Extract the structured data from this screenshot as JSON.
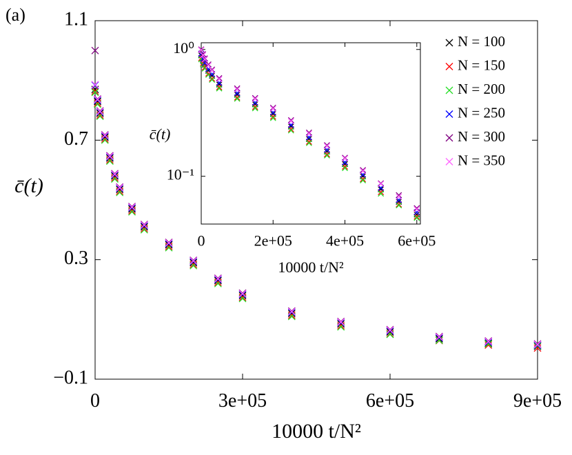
{
  "chart_data": [
    {
      "type": "scatter",
      "annotation": "(a)",
      "x_label": "10000 t/N²",
      "y_label": "c̄(t)",
      "xlim": [
        0,
        900000
      ],
      "ylim": [
        -0.1,
        1.1
      ],
      "xticks": [
        0,
        {
          "value": 300000,
          "label": "3e+05"
        },
        {
          "value": 600000,
          "label": "6e+05"
        },
        {
          "value": 900000,
          "label": "9e+05"
        }
      ],
      "yticks": [
        {
          "value": -0.1,
          "label": "−0.1"
        },
        0.3,
        0.7,
        1.1
      ],
      "grid": false,
      "log_y": false,
      "legend": "upper right",
      "x": [
        0,
        5000,
        10000,
        20000,
        30000,
        40000,
        50000,
        75000,
        100000,
        150000,
        200000,
        250000,
        300000,
        400000,
        500000,
        600000,
        700000,
        800000,
        900000
      ],
      "series": [
        {
          "name": "N = 100",
          "color": "#000000",
          "values": [
            0.87,
            0.83,
            0.79,
            0.71,
            0.64,
            0.58,
            0.535,
            0.47,
            0.41,
            0.35,
            0.29,
            0.23,
            0.18,
            0.12,
            0.085,
            0.058,
            0.035,
            0.02,
            0.01
          ]
        },
        {
          "name": "N = 150",
          "color": "#ff0000",
          "values": [
            0.864,
            0.824,
            0.784,
            0.704,
            0.634,
            0.574,
            0.529,
            0.464,
            0.404,
            0.344,
            0.284,
            0.224,
            0.174,
            0.114,
            0.079,
            0.052,
            0.029,
            0.014,
            0.004
          ]
        },
        {
          "name": "N = 200",
          "color": "#22dd22",
          "values": [
            0.86,
            0.82,
            0.78,
            0.7,
            0.63,
            0.57,
            0.525,
            0.46,
            0.4,
            0.34,
            0.28,
            0.22,
            0.17,
            0.11,
            0.075,
            0.05,
            0.03,
            0.018,
            0.012
          ]
        },
        {
          "name": "N = 250",
          "color": "#0000ff",
          "values": [
            0.884,
            0.834,
            0.794,
            0.714,
            0.644,
            0.584,
            0.539,
            0.474,
            0.414,
            0.354,
            0.294,
            0.234,
            0.184,
            0.124,
            0.089,
            0.062,
            0.039,
            0.024,
            0.014
          ]
        },
        {
          "name": "N = 300",
          "color": "#800080",
          "values": [
            1.0,
            0.838,
            0.798,
            0.718,
            0.648,
            0.588,
            0.543,
            0.478,
            0.418,
            0.358,
            0.298,
            0.238,
            0.188,
            0.128,
            0.093,
            0.066,
            0.043,
            0.028,
            0.018
          ]
        },
        {
          "name": "N = 350",
          "color": "#ff66ff",
          "values": [
            0.886,
            0.836,
            0.796,
            0.716,
            0.646,
            0.586,
            0.541,
            0.476,
            0.416,
            0.356,
            0.296,
            0.236,
            0.186,
            0.126,
            0.091,
            0.064,
            0.041,
            0.026,
            0.016
          ]
        }
      ]
    },
    {
      "type": "scatter",
      "x_label": "10000 t/N²",
      "y_label": "c̄(t)",
      "xlim": [
        0,
        610000
      ],
      "ylim": [
        0.042,
        1.13
      ],
      "xticks": [
        0,
        {
          "value": 200000,
          "label": "2e+05"
        },
        {
          "value": 400000,
          "label": "4e+05"
        },
        {
          "value": 600000,
          "label": "6e+05"
        }
      ],
      "yticks": [
        {
          "value": 1,
          "label": "10⁰"
        },
        {
          "value": 0.1,
          "label": "10⁻¹"
        }
      ],
      "grid": false,
      "log_y": true,
      "x": [
        0,
        5000,
        10000,
        20000,
        30000,
        50000,
        100000,
        150000,
        200000,
        250000,
        300000,
        350000,
        400000,
        450000,
        500000,
        550000,
        600000
      ],
      "series": [
        {
          "color": "#000000",
          "values": [
            0.9,
            0.82,
            0.76,
            0.68,
            0.62,
            0.53,
            0.44,
            0.37,
            0.31,
            0.247,
            0.197,
            0.157,
            0.125,
            0.1,
            0.079,
            0.063,
            0.05
          ]
        },
        {
          "color": "#ff0000",
          "values": [
            0.855,
            0.779,
            0.722,
            0.646,
            0.589,
            0.504,
            0.418,
            0.352,
            0.295,
            0.235,
            0.187,
            0.149,
            0.119,
            0.095,
            0.075,
            0.06,
            0.048
          ]
        },
        {
          "color": "#22dd22",
          "values": [
            0.837,
            0.763,
            0.707,
            0.632,
            0.577,
            0.493,
            0.409,
            0.344,
            0.288,
            0.23,
            0.183,
            0.146,
            0.116,
            0.093,
            0.073,
            0.059,
            0.047
          ]
        },
        {
          "color": "#0000ff",
          "values": [
            0.927,
            0.845,
            0.783,
            0.7,
            0.639,
            0.546,
            0.453,
            0.381,
            0.319,
            0.254,
            0.203,
            0.162,
            0.129,
            0.103,
            0.081,
            0.065,
            0.052
          ]
        },
        {
          "color": "#800080",
          "values": [
            1.0,
            0.918,
            0.851,
            0.762,
            0.694,
            0.594,
            0.493,
            0.414,
            0.347,
            0.277,
            0.221,
            0.176,
            0.14,
            0.112,
            0.088,
            0.071,
            0.056
          ]
        },
        {
          "color": "#ff66ff",
          "values": [
            0.99,
            0.902,
            0.836,
            0.748,
            0.682,
            0.583,
            0.484,
            0.407,
            0.341,
            0.272,
            0.217,
            0.173,
            0.138,
            0.11,
            0.087,
            0.069,
            0.055
          ]
        }
      ]
    }
  ]
}
